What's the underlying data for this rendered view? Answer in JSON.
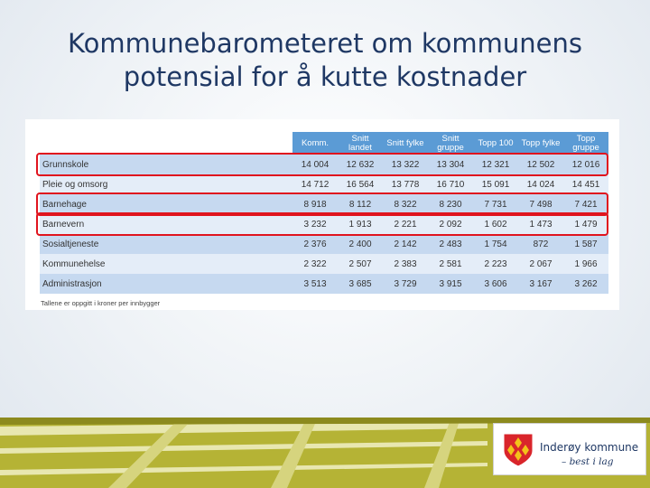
{
  "slide": {
    "title_line1": "Kommunebarometeret om kommunens",
    "title_line2": "potensial for å kutte kostnader"
  },
  "table": {
    "columns": [
      "",
      "Komm.",
      "Snitt landet",
      "Snitt fylke",
      "Snitt gruppe",
      "Topp 100",
      "Topp fylke",
      "Topp gruppe"
    ],
    "rows": [
      {
        "label": "Grunnskole",
        "values": [
          "14 004",
          "12 632",
          "13 322",
          "13 304",
          "12 321",
          "12 502",
          "12 016"
        ],
        "highlighted": true
      },
      {
        "label": "Pleie og omsorg",
        "values": [
          "14 712",
          "16 564",
          "13 778",
          "16 710",
          "15 091",
          "14 024",
          "14 451"
        ],
        "highlighted": false
      },
      {
        "label": "Barnehage",
        "values": [
          "8 918",
          "8 112",
          "8 322",
          "8 230",
          "7 731",
          "7 498",
          "7 421"
        ],
        "highlighted": true
      },
      {
        "label": "Barnevern",
        "values": [
          "3 232",
          "1 913",
          "2 221",
          "2 092",
          "1 602",
          "1 473",
          "1 479"
        ],
        "highlighted": true
      },
      {
        "label": "Sosialtjeneste",
        "values": [
          "2 376",
          "2 400",
          "2 142",
          "2 483",
          "1 754",
          "872",
          "1 587"
        ],
        "highlighted": false
      },
      {
        "label": "Kommunehelse",
        "values": [
          "2 322",
          "2 507",
          "2 383",
          "2 581",
          "2 223",
          "2 067",
          "1 966"
        ],
        "highlighted": false
      },
      {
        "label": "Administrasjon",
        "values": [
          "3 513",
          "3 685",
          "3 729",
          "3 915",
          "3 606",
          "3 167",
          "3 262"
        ],
        "highlighted": false
      }
    ],
    "footnote": "Tallene er oppgitt i kroner per innbygger"
  },
  "logo": {
    "name": "Inderøy kommune",
    "tagline": "– best i lag"
  },
  "colors": {
    "title": "#1f3864",
    "header_bg": "#5b9bd5",
    "row_odd": "#c6d9f0",
    "row_even": "#e4edf8",
    "highlight": "#e0141e",
    "footer_green": "#b5b335",
    "shield_red": "#d9252b",
    "shield_gold": "#f3c21a"
  }
}
